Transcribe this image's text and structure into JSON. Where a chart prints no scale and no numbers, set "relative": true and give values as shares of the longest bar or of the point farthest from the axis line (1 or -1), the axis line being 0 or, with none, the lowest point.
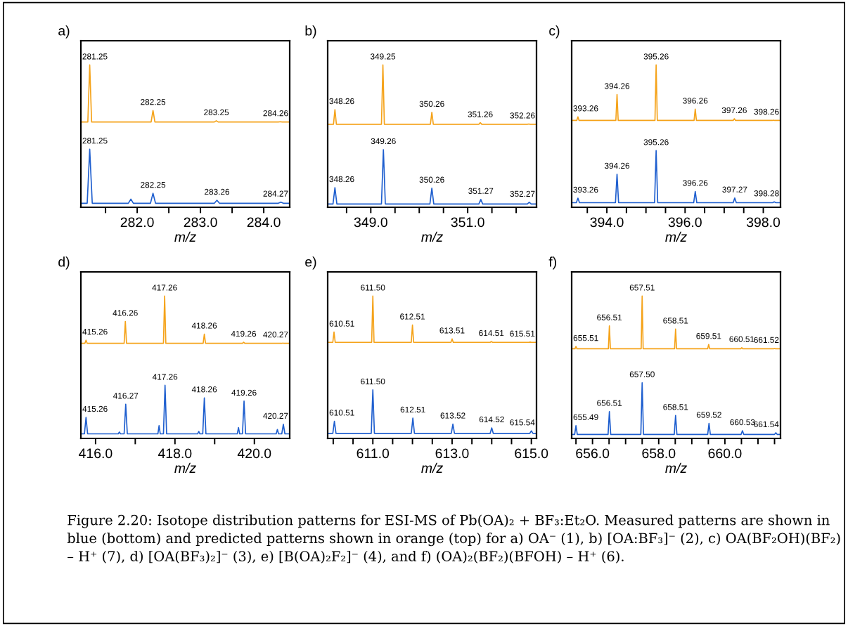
{
  "chart_data": [
    {
      "type": "line",
      "title": "a)",
      "xlabel": "m/z",
      "relative": true,
      "xlim": [
        281.11,
        284.41
      ],
      "xticks": [
        {
          "value": 281.5,
          "label": null
        },
        {
          "value": 282.0,
          "label": "282.0"
        },
        {
          "value": 282.5,
          "label": null
        },
        {
          "value": 283.0,
          "label": "283.0"
        },
        {
          "value": 283.5,
          "label": null
        },
        {
          "value": 284.0,
          "label": "284.0"
        }
      ],
      "series": [
        {
          "color": "#f5a31a",
          "x": [
            281.11,
            281.22,
            281.25,
            281.28,
            282.22,
            282.25,
            282.28,
            283.22,
            283.25,
            283.28,
            284.23,
            284.26,
            284.29,
            284.41
          ],
          "values": [
            0.599,
            0.599,
            1,
            0.599,
            0.599,
            0.68,
            0.599,
            0.599,
            0.608,
            0.599,
            0.599,
            0.601,
            0.599,
            0.599
          ]
        },
        {
          "color": "#1f5fcf",
          "x": [
            281.11,
            281.21,
            281.25,
            281.29,
            281.86,
            281.9,
            281.94,
            282.21,
            282.25,
            282.29,
            283.22,
            283.26,
            283.3,
            284.23,
            284.27,
            284.31,
            284.41
          ],
          "values": [
            0.028,
            0.028,
            0.408,
            0.028,
            0.028,
            0.057,
            0.028,
            0.028,
            0.098,
            0.028,
            0.028,
            0.049,
            0.028,
            0.028,
            0.036,
            0.028,
            0.028
          ]
        }
      ],
      "annotations": [
        {
          "text": "281.25",
          "x": 281.25,
          "y": 1
        },
        {
          "text": "282.25",
          "x": 282.25,
          "y": 0.68
        },
        {
          "text": "283.25",
          "x": 283.25,
          "y": 0.608
        },
        {
          "text": "284.26",
          "x": 284.26,
          "y": 0.601
        },
        {
          "text": "281.25",
          "x": 281.25,
          "y": 0.408
        },
        {
          "text": "282.25",
          "x": 282.25,
          "y": 0.098
        },
        {
          "text": "283.26",
          "x": 283.26,
          "y": 0.049
        },
        {
          "text": "284.27",
          "x": 284.27,
          "y": 0.036
        }
      ]
    },
    {
      "type": "line",
      "title": "b)",
      "xlabel": "m/z",
      "relative": true,
      "xlim": [
        348.11,
        352.42
      ],
      "xticks": [
        {
          "value": 348.5,
          "label": null
        },
        {
          "value": 349.0,
          "label": "349.0"
        },
        {
          "value": 349.5,
          "label": null
        },
        {
          "value": 350.0,
          "label": null
        },
        {
          "value": 350.5,
          "label": null
        },
        {
          "value": 351.0,
          "label": "351.0"
        },
        {
          "value": 351.5,
          "label": null
        },
        {
          "value": 352.0,
          "label": null
        }
      ],
      "series": [
        {
          "color": "#f5a31a",
          "x": [
            348.11,
            348.23,
            348.26,
            348.29,
            349.22,
            349.25,
            349.28,
            350.23,
            350.26,
            350.29,
            351.23,
            351.26,
            351.29,
            352.23,
            352.26,
            352.29,
            352.42
          ],
          "values": [
            0.583,
            0.583,
            0.686,
            0.583,
            0.583,
            1,
            0.583,
            0.583,
            0.667,
            0.583,
            0.583,
            0.594,
            0.583,
            0.583,
            0.585,
            0.583,
            0.583
          ]
        },
        {
          "color": "#1f5fcf",
          "x": [
            348.11,
            348.22,
            348.26,
            348.3,
            349.22,
            349.26,
            349.3,
            350.22,
            350.26,
            350.3,
            351.23,
            351.27,
            351.31,
            352.23,
            352.27,
            352.31,
            352.42
          ],
          "values": [
            0.023,
            0.023,
            0.138,
            0.023,
            0.023,
            0.405,
            0.023,
            0.023,
            0.134,
            0.023,
            0.023,
            0.055,
            0.023,
            0.023,
            0.035,
            0.023,
            0.023
          ]
        }
      ],
      "annotations": [
        {
          "text": "348.26",
          "x": 348.26,
          "y": 0.686
        },
        {
          "text": "349.25",
          "x": 349.25,
          "y": 1
        },
        {
          "text": "350.26",
          "x": 350.26,
          "y": 0.667
        },
        {
          "text": "351.26",
          "x": 351.26,
          "y": 0.594
        },
        {
          "text": "352.26",
          "x": 352.26,
          "y": 0.585
        },
        {
          "text": "348.26",
          "x": 348.26,
          "y": 0.138
        },
        {
          "text": "349.26",
          "x": 349.26,
          "y": 0.405
        },
        {
          "text": "350.26",
          "x": 350.26,
          "y": 0.134
        },
        {
          "text": "351.27",
          "x": 351.27,
          "y": 0.055
        },
        {
          "text": "352.27",
          "x": 352.27,
          "y": 0.035
        }
      ]
    },
    {
      "type": "line",
      "title": "c)",
      "xlabel": "m/z",
      "relative": true,
      "xlim": [
        393.1,
        398.44
      ],
      "xticks": [
        {
          "value": 393.5,
          "label": null
        },
        {
          "value": 394.0,
          "label": "394.0"
        },
        {
          "value": 394.5,
          "label": null
        },
        {
          "value": 395.0,
          "label": null
        },
        {
          "value": 395.5,
          "label": null
        },
        {
          "value": 396.0,
          "label": "396.0"
        },
        {
          "value": 396.5,
          "label": null
        },
        {
          "value": 397.0,
          "label": null
        },
        {
          "value": 397.5,
          "label": null
        },
        {
          "value": 398.0,
          "label": "398.0"
        }
      ],
      "series": [
        {
          "color": "#f5a31a",
          "x": [
            393.1,
            393.23,
            393.26,
            393.29,
            394.23,
            394.26,
            394.29,
            395.23,
            395.26,
            395.29,
            396.23,
            396.26,
            396.29,
            397.23,
            397.26,
            397.29,
            398.23,
            398.26,
            398.29,
            398.44
          ],
          "values": [
            0.61,
            0.61,
            0.635,
            0.61,
            0.61,
            0.792,
            0.61,
            0.61,
            1,
            0.61,
            0.61,
            0.689,
            0.61,
            0.61,
            0.622,
            0.61,
            0.61,
            0.612,
            0.61,
            0.61
          ]
        },
        {
          "color": "#1f5fcf",
          "x": [
            393.1,
            393.22,
            393.26,
            393.3,
            394.22,
            394.26,
            394.3,
            395.22,
            395.26,
            395.3,
            396.22,
            396.26,
            396.3,
            397.23,
            397.27,
            397.31,
            398.24,
            398.28,
            398.32,
            398.44
          ],
          "values": [
            0.032,
            0.032,
            0.064,
            0.032,
            0.032,
            0.232,
            0.032,
            0.032,
            0.398,
            0.032,
            0.032,
            0.111,
            0.032,
            0.032,
            0.065,
            0.032,
            0.032,
            0.038,
            0.032,
            0.032
          ]
        }
      ],
      "annotations": [
        {
          "text": "393.26",
          "x": 393.26,
          "y": 0.635
        },
        {
          "text": "394.26",
          "x": 394.26,
          "y": 0.792
        },
        {
          "text": "395.26",
          "x": 395.26,
          "y": 1
        },
        {
          "text": "396.26",
          "x": 396.26,
          "y": 0.689
        },
        {
          "text": "397.26",
          "x": 397.26,
          "y": 0.622
        },
        {
          "text": "398.26",
          "x": 398.26,
          "y": 0.612
        },
        {
          "text": "393.26",
          "x": 393.26,
          "y": 0.064
        },
        {
          "text": "394.26",
          "x": 394.26,
          "y": 0.232
        },
        {
          "text": "395.26",
          "x": 395.26,
          "y": 0.398
        },
        {
          "text": "396.26",
          "x": 396.26,
          "y": 0.111
        },
        {
          "text": "397.27",
          "x": 397.27,
          "y": 0.065
        },
        {
          "text": "398.28",
          "x": 398.28,
          "y": 0.038
        }
      ]
    },
    {
      "type": "line",
      "title": "d)",
      "xlabel": "m/z",
      "relative": true,
      "xlim": [
        415.63,
        420.89
      ],
      "xticks": [
        {
          "value": 416.0,
          "label": "416.0"
        },
        {
          "value": 417.0,
          "label": null
        },
        {
          "value": 418.0,
          "label": "418.0"
        },
        {
          "value": 419.0,
          "label": null
        },
        {
          "value": 420.0,
          "label": "420.0"
        }
      ],
      "series": [
        {
          "color": "#f5a31a",
          "x": [
            415.63,
            415.73,
            415.76,
            415.79,
            416.72,
            416.75,
            416.78,
            417.71,
            417.74,
            417.77,
            418.71,
            418.74,
            418.77,
            419.7,
            419.73,
            419.76,
            420.69,
            420.72,
            420.75,
            420.89
          ],
          "values": [
            0.668,
            0.668,
            0.69,
            0.668,
            0.668,
            0.822,
            0.668,
            0.668,
            1,
            0.668,
            0.668,
            0.733,
            0.668,
            0.668,
            0.676,
            0.668,
            0.668,
            0.67,
            0.668,
            0.668
          ]
        },
        {
          "color": "#1f5fcf",
          "x": [
            415.63,
            415.72,
            415.76,
            415.8,
            416.57,
            416.6,
            416.63,
            416.72,
            416.76,
            416.8,
            417.57,
            417.6,
            417.63,
            417.71,
            417.75,
            417.79,
            418.57,
            418.6,
            418.63,
            418.7,
            418.74,
            418.78,
            419.57,
            419.6,
            419.63,
            419.7,
            419.74,
            419.78,
            420.55,
            420.58,
            420.61,
            420.69,
            420.73,
            420.77,
            420.89
          ],
          "values": [
            0.032,
            0.032,
            0.148,
            0.032,
            0.032,
            0.045,
            0.032,
            0.032,
            0.24,
            0.032,
            0.032,
            0.09,
            0.032,
            0.032,
            0.373,
            0.032,
            0.032,
            0.049,
            0.032,
            0.032,
            0.285,
            0.032,
            0.032,
            0.076,
            0.032,
            0.032,
            0.262,
            0.032,
            0.032,
            0.063,
            0.032,
            0.032,
            0.099,
            0.032,
            0.032
          ]
        }
      ],
      "annotations": [
        {
          "text": "415.26",
          "x": 415.76,
          "y": 0.69
        },
        {
          "text": "416.26",
          "x": 416.75,
          "y": 0.822
        },
        {
          "text": "417.26",
          "x": 417.74,
          "y": 1
        },
        {
          "text": "418.26",
          "x": 418.74,
          "y": 0.733
        },
        {
          "text": "419.26",
          "x": 419.73,
          "y": 0.676
        },
        {
          "text": "420.27",
          "x": 420.72,
          "y": 0.67
        },
        {
          "text": "415.26",
          "x": 415.76,
          "y": 0.148
        },
        {
          "text": "416.27",
          "x": 416.76,
          "y": 0.24
        },
        {
          "text": "417.26",
          "x": 417.75,
          "y": 0.373
        },
        {
          "text": "418.26",
          "x": 418.74,
          "y": 0.285
        },
        {
          "text": "419.26",
          "x": 419.74,
          "y": 0.262
        },
        {
          "text": "420.27",
          "x": 420.73,
          "y": 0.099
        }
      ]
    },
    {
      "type": "line",
      "title": "e)",
      "xlabel": "m/z",
      "relative": true,
      "xlim": [
        609.86,
        615.13
      ],
      "xticks": [
        {
          "value": 610.0,
          "label": null
        },
        {
          "value": 610.5,
          "label": null
        },
        {
          "value": 611.0,
          "label": "611.0"
        },
        {
          "value": 611.5,
          "label": null
        },
        {
          "value": 612.0,
          "label": null
        },
        {
          "value": 612.5,
          "label": null
        },
        {
          "value": 613.0,
          "label": "613.0"
        },
        {
          "value": 613.5,
          "label": null
        },
        {
          "value": 614.0,
          "label": null
        },
        {
          "value": 614.5,
          "label": null
        },
        {
          "value": 615.0,
          "label": "615.0"
        }
      ],
      "series": [
        {
          "color": "#f5a31a",
          "x": [
            609.86,
            609.99,
            610.02,
            610.05,
            610.97,
            611.0,
            611.03,
            611.97,
            612.0,
            612.03,
            612.97,
            613.0,
            613.03,
            613.96,
            613.99,
            614.02,
            614.94,
            614.97,
            615.0,
            615.13
          ],
          "values": [
            0.675,
            0.675,
            0.747,
            0.675,
            0.675,
            1,
            0.675,
            0.675,
            0.797,
            0.675,
            0.675,
            0.699,
            0.675,
            0.675,
            0.681,
            0.675,
            0.675,
            0.677,
            0.675,
            0.675
          ]
        },
        {
          "color": "#1f5fcf",
          "x": [
            609.86,
            609.99,
            610.03,
            610.07,
            610.96,
            611.0,
            611.04,
            611.97,
            612.01,
            612.05,
            612.98,
            613.02,
            613.06,
            613.96,
            614.0,
            614.04,
            614.96,
            615.0,
            615.04,
            615.13
          ],
          "values": [
            0.035,
            0.035,
            0.121,
            0.035,
            0.035,
            0.341,
            0.035,
            0.035,
            0.143,
            0.035,
            0.035,
            0.101,
            0.035,
            0.035,
            0.074,
            0.035,
            0.035,
            0.053,
            0.035,
            0.035
          ]
        }
      ],
      "annotations": [
        {
          "text": "610.51",
          "x": 610.02,
          "y": 0.747
        },
        {
          "text": "611.50",
          "x": 611.0,
          "y": 1
        },
        {
          "text": "612.51",
          "x": 612.0,
          "y": 0.797
        },
        {
          "text": "613.51",
          "x": 613.0,
          "y": 0.699
        },
        {
          "text": "614.51",
          "x": 613.99,
          "y": 0.681
        },
        {
          "text": "615.51",
          "x": 614.97,
          "y": 0.677
        },
        {
          "text": "610.51",
          "x": 610.03,
          "y": 0.121
        },
        {
          "text": "611.50",
          "x": 611.0,
          "y": 0.341
        },
        {
          "text": "612.51",
          "x": 612.01,
          "y": 0.143
        },
        {
          "text": "613.52",
          "x": 613.02,
          "y": 0.101
        },
        {
          "text": "614.52",
          "x": 614.0,
          "y": 0.074
        },
        {
          "text": "615.54",
          "x": 615.0,
          "y": 0.053
        }
      ]
    },
    {
      "type": "line",
      "title": "f)",
      "xlabel": "m/z",
      "relative": true,
      "xlim": [
        655.37,
        661.68
      ],
      "xticks": [
        {
          "value": 655.5,
          "label": null
        },
        {
          "value": 656.0,
          "label": "656.0"
        },
        {
          "value": 656.5,
          "label": null
        },
        {
          "value": 657.0,
          "label": null
        },
        {
          "value": 657.5,
          "label": null
        },
        {
          "value": 658.0,
          "label": "658.0"
        },
        {
          "value": 658.5,
          "label": null
        },
        {
          "value": 659.0,
          "label": null
        },
        {
          "value": 659.5,
          "label": null
        },
        {
          "value": 660.0,
          "label": "660.0"
        },
        {
          "value": 660.5,
          "label": null
        },
        {
          "value": 661.0,
          "label": null
        },
        {
          "value": 661.5,
          "label": null
        }
      ],
      "series": [
        {
          "color": "#f5a31a",
          "x": [
            655.37,
            655.47,
            655.5,
            655.53,
            656.48,
            656.51,
            656.54,
            657.47,
            657.5,
            657.53,
            658.48,
            658.51,
            658.54,
            659.48,
            659.51,
            659.54,
            660.48,
            660.51,
            660.54,
            661.47,
            661.5,
            661.53,
            661.68
          ],
          "values": [
            0.63,
            0.63,
            0.646,
            0.63,
            0.63,
            0.791,
            0.63,
            0.63,
            1,
            0.63,
            0.63,
            0.768,
            0.63,
            0.63,
            0.66,
            0.63,
            0.63,
            0.638,
            0.63,
            0.63,
            0.632,
            0.63,
            0.63
          ]
        },
        {
          "color": "#1f5fcf",
          "x": [
            655.37,
            655.46,
            655.5,
            655.54,
            656.47,
            656.51,
            656.55,
            657.46,
            657.5,
            657.54,
            658.47,
            658.51,
            658.55,
            659.48,
            659.52,
            659.56,
            660.49,
            660.53,
            660.57,
            661.5,
            661.54,
            661.58,
            661.68
          ],
          "values": [
            0.028,
            0.028,
            0.09,
            0.028,
            0.028,
            0.189,
            0.028,
            0.028,
            0.391,
            0.028,
            0.028,
            0.161,
            0.028,
            0.028,
            0.106,
            0.028,
            0.028,
            0.054,
            0.028,
            0.028,
            0.04,
            0.028,
            0.028
          ]
        }
      ],
      "annotations": [
        {
          "text": "655.51",
          "x": 655.5,
          "y": 0.646
        },
        {
          "text": "656.51",
          "x": 656.51,
          "y": 0.791
        },
        {
          "text": "657.51",
          "x": 657.5,
          "y": 1
        },
        {
          "text": "658.51",
          "x": 658.51,
          "y": 0.768
        },
        {
          "text": "659.51",
          "x": 659.51,
          "y": 0.66
        },
        {
          "text": "660.51",
          "x": 660.51,
          "y": 0.638
        },
        {
          "text": "661.52",
          "x": 661.5,
          "y": 0.632
        },
        {
          "text": "655.49",
          "x": 655.5,
          "y": 0.09
        },
        {
          "text": "656.51",
          "x": 656.51,
          "y": 0.189
        },
        {
          "text": "657.50",
          "x": 657.5,
          "y": 0.391
        },
        {
          "text": "658.51",
          "x": 658.51,
          "y": 0.161
        },
        {
          "text": "659.52",
          "x": 659.52,
          "y": 0.106
        },
        {
          "text": "660.53",
          "x": 660.53,
          "y": 0.054
        },
        {
          "text": "661.54",
          "x": 661.54,
          "y": 0.04
        },
        "Figure 2.20: Isotope distribution patterns for ESI-MS of Pb(OA)₂ + BF₃:Et₂O. Measured patterns are shown in blue (bottom) and predicted patterns shown in orange (top) for a) OA⁻ (1), b) [OA:BF₃]⁻ (2), c) OA(BF₂OH)(BF₂) – H⁺ (7), d) [OA(BF₃)₂]⁻ (3), e) [B(OA)₂F₂]⁻ (4), and f) (OA)₂(BF₂)(BFOH) – H⁺ (6)."
      ]
    }
  ]
}
